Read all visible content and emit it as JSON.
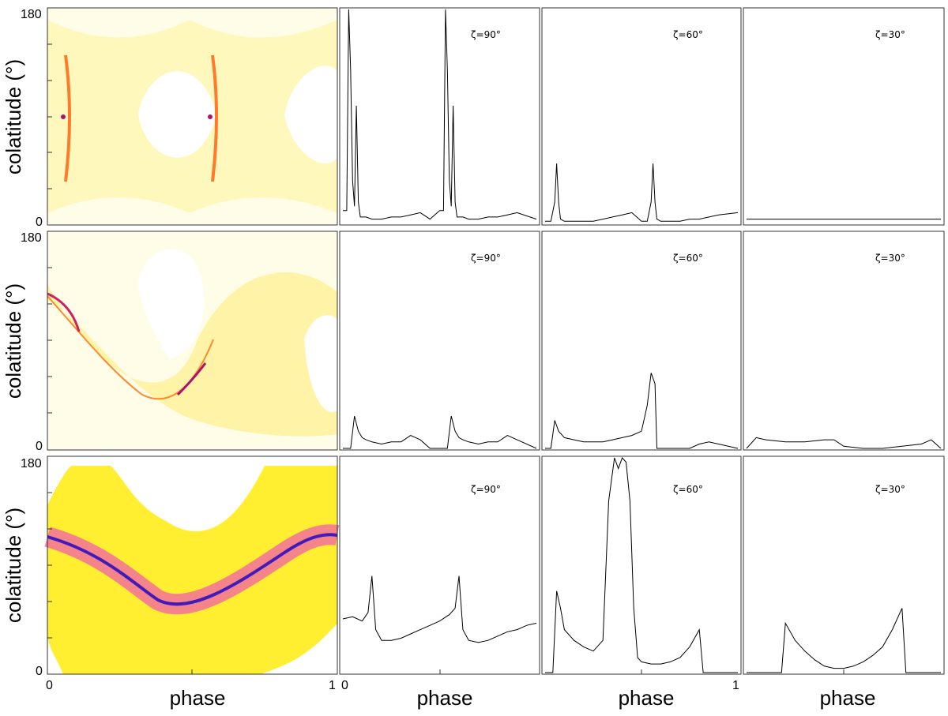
{
  "figure": {
    "ylabel": "colatitude (°)",
    "xlabel": "phase",
    "ytick_top": "180",
    "ytick_bottom": "0",
    "xtick_left": "0",
    "xtick_right": "1",
    "colors": {
      "map_low": "#fff7b0",
      "map_mid": "#ffe600",
      "map_high": "#f060a8",
      "map_peak": "#3010c0",
      "line": "#000000"
    }
  },
  "chart_data": [
    {
      "type": "heatmap",
      "row": 1,
      "xlabel": "",
      "ylabel": "colatitude (°)",
      "xlim": [
        0,
        1
      ],
      "ylim": [
        0,
        180
      ],
      "yticks": [
        "0",
        "180"
      ],
      "caustic_points": [
        {
          "phase": 0.07,
          "colatitude": 90
        },
        {
          "phase": 0.57,
          "colatitude": 90
        }
      ]
    },
    {
      "type": "line",
      "row": 1,
      "annotation": "ζ=90°",
      "x": [
        0.0,
        0.02,
        0.03,
        0.04,
        0.05,
        0.06,
        0.07,
        0.08,
        0.09,
        0.1,
        0.12,
        0.15,
        0.2,
        0.25,
        0.3,
        0.35,
        0.4,
        0.45,
        0.5,
        0.52,
        0.53,
        0.54,
        0.55,
        0.56,
        0.57,
        0.58,
        0.59,
        0.6,
        0.62,
        0.65,
        0.7,
        0.75,
        0.8,
        0.85,
        0.9,
        1.0
      ],
      "y": [
        0.06,
        0.06,
        1.0,
        0.72,
        0.2,
        0.08,
        0.55,
        0.1,
        0.03,
        0.03,
        0.03,
        0.02,
        0.02,
        0.03,
        0.03,
        0.04,
        0.05,
        0.02,
        0.06,
        0.06,
        1.0,
        0.72,
        0.2,
        0.08,
        0.55,
        0.1,
        0.03,
        0.03,
        0.03,
        0.02,
        0.02,
        0.03,
        0.03,
        0.04,
        0.05,
        0.02
      ],
      "ylim": [
        0,
        1
      ]
    },
    {
      "type": "line",
      "row": 1,
      "annotation": "ζ=60°",
      "x": [
        0.0,
        0.03,
        0.05,
        0.06,
        0.07,
        0.08,
        0.1,
        0.15,
        0.2,
        0.25,
        0.3,
        0.35,
        0.4,
        0.45,
        0.5,
        0.53,
        0.55,
        0.56,
        0.57,
        0.58,
        0.6,
        0.65,
        0.7,
        0.75,
        0.8,
        0.85,
        0.9,
        1.0
      ],
      "y": [
        0.01,
        0.01,
        0.1,
        0.28,
        0.1,
        0.02,
        0.01,
        0.01,
        0.01,
        0.01,
        0.02,
        0.03,
        0.04,
        0.05,
        0.01,
        0.01,
        0.1,
        0.28,
        0.1,
        0.02,
        0.01,
        0.01,
        0.01,
        0.02,
        0.02,
        0.03,
        0.04,
        0.05
      ],
      "ylim": [
        0,
        1
      ]
    },
    {
      "type": "line",
      "row": 1,
      "annotation": "ζ=30°",
      "x": [
        0.0,
        0.1,
        0.2,
        0.3,
        0.4,
        0.5,
        0.6,
        0.7,
        0.8,
        0.9,
        1.0
      ],
      "y": [
        0.02,
        0.02,
        0.02,
        0.02,
        0.02,
        0.02,
        0.02,
        0.02,
        0.02,
        0.02,
        0.02
      ],
      "ylim": [
        0,
        1
      ]
    },
    {
      "type": "heatmap",
      "row": 2,
      "xlabel": "",
      "ylabel": "colatitude (°)",
      "xlim": [
        0,
        1
      ],
      "ylim": [
        0,
        180
      ],
      "yticks": [
        "0",
        "180"
      ],
      "caustic_points": [
        {
          "phase": 0.02,
          "colatitude": 128
        },
        {
          "phase": 0.5,
          "colatitude": 58
        }
      ]
    },
    {
      "type": "line",
      "row": 2,
      "annotation": "ζ=90°",
      "x": [
        0.0,
        0.04,
        0.06,
        0.08,
        0.1,
        0.12,
        0.15,
        0.2,
        0.25,
        0.3,
        0.35,
        0.4,
        0.45,
        0.5,
        0.54,
        0.56,
        0.58,
        0.6,
        0.62,
        0.65,
        0.7,
        0.75,
        0.8,
        0.85,
        0.9,
        1.0
      ],
      "y": [
        0.0,
        0.0,
        0.15,
        0.08,
        0.05,
        0.04,
        0.03,
        0.02,
        0.03,
        0.03,
        0.06,
        0.04,
        0.0,
        0.0,
        0.0,
        0.15,
        0.08,
        0.05,
        0.04,
        0.03,
        0.02,
        0.03,
        0.03,
        0.06,
        0.04,
        0.0
      ],
      "ylim": [
        0,
        1
      ]
    },
    {
      "type": "line",
      "row": 2,
      "annotation": "ζ=60°",
      "x": [
        0.0,
        0.03,
        0.05,
        0.07,
        0.1,
        0.15,
        0.2,
        0.25,
        0.3,
        0.35,
        0.4,
        0.45,
        0.5,
        0.53,
        0.55,
        0.57,
        0.58,
        0.6,
        0.65,
        0.7,
        0.75,
        0.8,
        0.85,
        1.0
      ],
      "y": [
        0.0,
        0.0,
        0.13,
        0.08,
        0.05,
        0.04,
        0.03,
        0.03,
        0.03,
        0.04,
        0.05,
        0.06,
        0.08,
        0.2,
        0.35,
        0.3,
        0.0,
        0.0,
        0.0,
        0.0,
        0.0,
        0.02,
        0.03,
        0.0
      ],
      "ylim": [
        0,
        1
      ]
    },
    {
      "type": "line",
      "row": 2,
      "annotation": "ζ=30°",
      "x": [
        0.0,
        0.05,
        0.1,
        0.2,
        0.3,
        0.4,
        0.45,
        0.5,
        0.6,
        0.7,
        0.8,
        0.9,
        0.95,
        1.0
      ],
      "y": [
        0.0,
        0.05,
        0.04,
        0.03,
        0.03,
        0.04,
        0.04,
        0.01,
        0.0,
        0.0,
        0.01,
        0.02,
        0.04,
        0.0
      ],
      "ylim": [
        0,
        1
      ]
    },
    {
      "type": "heatmap",
      "row": 3,
      "xlabel": "phase",
      "ylabel": "colatitude (°)",
      "xlim": [
        0,
        1
      ],
      "ylim": [
        0,
        180
      ],
      "xticks": [
        "0",
        "1"
      ],
      "yticks": [
        "0",
        "180"
      ],
      "caustic_points": [
        {
          "phase": 0.4,
          "colatitude": 62
        },
        {
          "phase": 0.9,
          "colatitude": 118
        }
      ]
    },
    {
      "type": "line",
      "row": 3,
      "annotation": "ζ=90°",
      "x": [
        0.0,
        0.05,
        0.1,
        0.13,
        0.15,
        0.17,
        0.2,
        0.25,
        0.3,
        0.35,
        0.4,
        0.45,
        0.5,
        0.55,
        0.58,
        0.6,
        0.62,
        0.65,
        0.7,
        0.75,
        0.8,
        0.85,
        0.9,
        0.95,
        1.0
      ],
      "y": [
        0.25,
        0.26,
        0.24,
        0.28,
        0.45,
        0.2,
        0.15,
        0.15,
        0.16,
        0.18,
        0.2,
        0.22,
        0.24,
        0.27,
        0.3,
        0.45,
        0.2,
        0.15,
        0.14,
        0.15,
        0.17,
        0.19,
        0.2,
        0.22,
        0.23
      ],
      "ylim": [
        0,
        1
      ]
    },
    {
      "type": "line",
      "row": 3,
      "annotation": "ζ=60°",
      "x": [
        0.0,
        0.04,
        0.06,
        0.08,
        0.1,
        0.15,
        0.2,
        0.25,
        0.3,
        0.33,
        0.36,
        0.38,
        0.4,
        0.42,
        0.44,
        0.46,
        0.48,
        0.5,
        0.55,
        0.6,
        0.65,
        0.7,
        0.75,
        0.8,
        0.82,
        1.0
      ],
      "y": [
        0.0,
        0.0,
        0.38,
        0.3,
        0.2,
        0.15,
        0.12,
        0.1,
        0.15,
        0.8,
        1.0,
        0.95,
        1.0,
        0.98,
        0.8,
        0.3,
        0.07,
        0.05,
        0.04,
        0.04,
        0.05,
        0.07,
        0.12,
        0.2,
        0.0,
        0.0
      ],
      "ylim": [
        0,
        1
      ]
    },
    {
      "type": "line",
      "row": 3,
      "annotation": "ζ=30°",
      "x": [
        0.0,
        0.18,
        0.2,
        0.25,
        0.3,
        0.35,
        0.4,
        0.45,
        0.5,
        0.55,
        0.6,
        0.65,
        0.7,
        0.75,
        0.8,
        0.82,
        1.0
      ],
      "y": [
        0.0,
        0.0,
        0.23,
        0.15,
        0.1,
        0.06,
        0.03,
        0.02,
        0.02,
        0.03,
        0.05,
        0.08,
        0.12,
        0.2,
        0.3,
        0.0,
        0.0
      ],
      "ylim": [
        0,
        1
      ]
    }
  ]
}
